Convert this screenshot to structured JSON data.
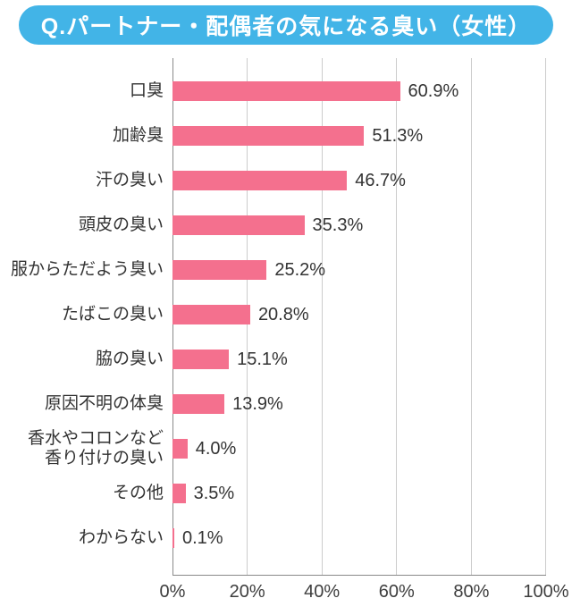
{
  "title": "Q.パートナー・配偶者の気になる臭い（女性）",
  "colors": {
    "title_bg": "#42b4e7",
    "bar": "#f4708e",
    "grid": "#cccccc",
    "axis": "#8a8a8a",
    "text": "#333333"
  },
  "chart_data": {
    "type": "bar",
    "orientation": "horizontal",
    "title": "Q.パートナー・配偶者の気になる臭い（女性）",
    "categories": [
      "口臭",
      "加齢臭",
      "汗の臭い",
      "頭皮の臭い",
      "服からただよう臭い",
      "たばこの臭い",
      "脇の臭い",
      "原因不明の体臭",
      "香水やコロンなど\n香り付けの臭い",
      "その他",
      "わからない"
    ],
    "values": [
      60.9,
      51.3,
      46.7,
      35.3,
      25.2,
      20.8,
      15.1,
      13.9,
      4.0,
      3.5,
      0.1
    ],
    "value_labels": [
      "60.9%",
      "51.3%",
      "46.7%",
      "35.3%",
      "25.2%",
      "20.8%",
      "15.1%",
      "13.9%",
      "4.0%",
      "3.5%",
      "0.1%"
    ],
    "xlabel": "",
    "ylabel": "",
    "xlim": [
      0,
      100
    ],
    "x_ticks": [
      {
        "value": 0,
        "label": "0%"
      },
      {
        "value": 20,
        "label": "20%"
      },
      {
        "value": 40,
        "label": "40%"
      },
      {
        "value": 60,
        "label": "60%"
      },
      {
        "value": 80,
        "label": "80%"
      },
      {
        "value": 100,
        "label": "100%"
      }
    ],
    "grid": "vertical",
    "legend": "none"
  }
}
